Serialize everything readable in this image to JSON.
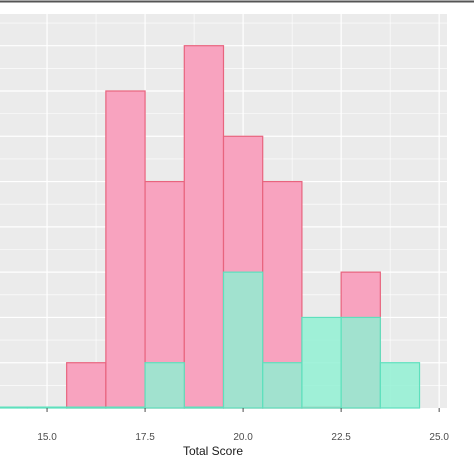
{
  "chart_data": {
    "type": "bar",
    "subtype": "overlapping-histogram",
    "title": "",
    "xlabel": "Total Score",
    "ylabel": "",
    "xlim": [
      13.8,
      25.2
    ],
    "ylim": [
      0,
      8.7
    ],
    "x_ticks": [
      15.0,
      17.5,
      20.0,
      22.5,
      25.0
    ],
    "x_tick_labels": [
      "15.0",
      "17.5",
      "20.0",
      "22.5",
      "25.0"
    ],
    "bin_width": 1,
    "grid": true,
    "legend": "none",
    "background": "#ebebeb",
    "series": [
      {
        "fill": "#f8a3bf",
        "stroke": "#e8647e",
        "bins": [
          {
            "x": 16,
            "count": 1
          },
          {
            "x": 17,
            "count": 7
          },
          {
            "x": 18,
            "count": 5
          },
          {
            "x": 19,
            "count": 8
          },
          {
            "x": 20,
            "count": 6
          },
          {
            "x": 21,
            "count": 5
          },
          {
            "x": 22,
            "count": 0
          },
          {
            "x": 23,
            "count": 3
          }
        ]
      },
      {
        "fill": "#8ef0d2",
        "stroke": "#5ee0bd",
        "bins": [
          {
            "x": 14,
            "count": 0
          },
          {
            "x": 15,
            "count": 0
          },
          {
            "x": 16,
            "count": 0
          },
          {
            "x": 17,
            "count": 0
          },
          {
            "x": 18,
            "count": 1
          },
          {
            "x": 19,
            "count": 0
          },
          {
            "x": 20,
            "count": 3
          },
          {
            "x": 21,
            "count": 1
          },
          {
            "x": 22,
            "count": 2
          },
          {
            "x": 23,
            "count": 2
          },
          {
            "x": 24,
            "count": 1
          }
        ]
      }
    ]
  }
}
